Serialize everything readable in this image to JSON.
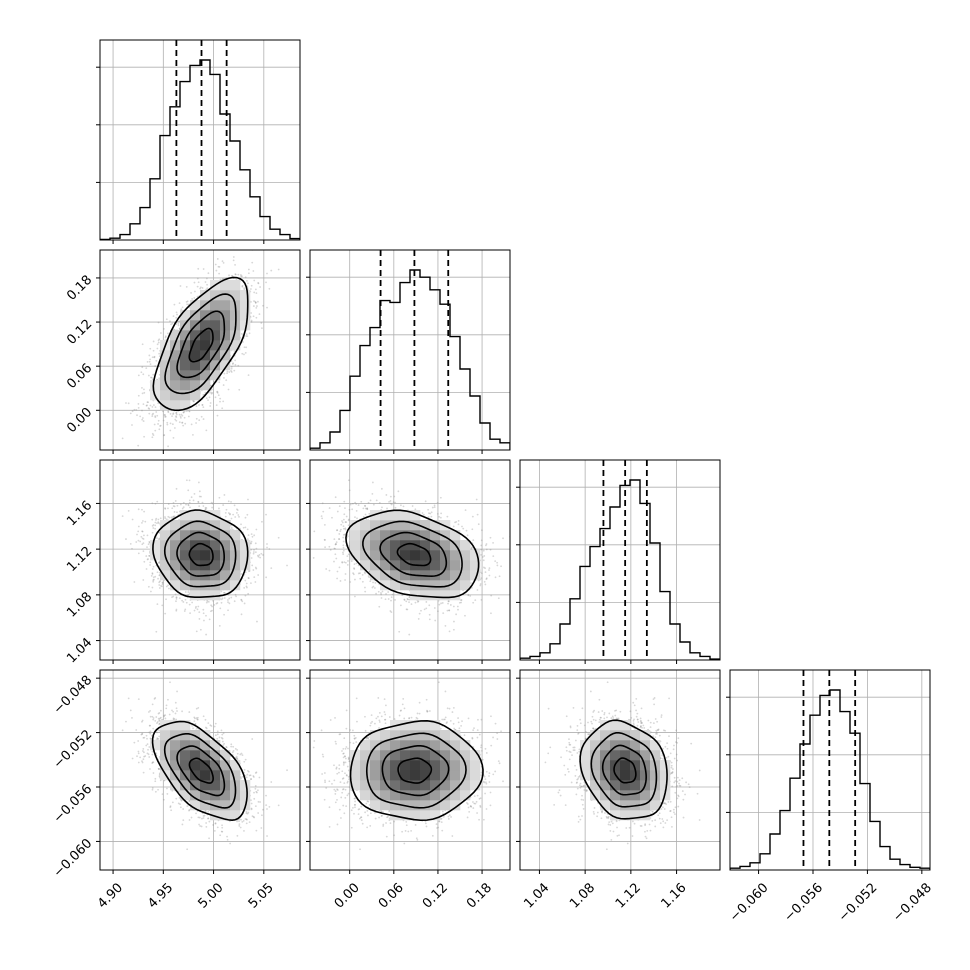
{
  "chart_data": {
    "type": "corner",
    "description_free": true,
    "parameters": [
      {
        "ticks": [
          4.9,
          4.95,
          5.0,
          5.05
        ],
        "tick_labels": [
          "4.90",
          "4.95",
          "5.00",
          "5.05"
        ],
        "range": [
          4.887,
          5.086
        ],
        "mean": 4.988,
        "sd": 0.0235,
        "quantiles": [
          4.963,
          4.988,
          5.013
        ],
        "hist": [
          0.003,
          0.01,
          0.03,
          0.09,
          0.18,
          0.34,
          0.58,
          0.74,
          0.88,
          0.97,
          1.0,
          0.92,
          0.7,
          0.55,
          0.39,
          0.24,
          0.13,
          0.06,
          0.03,
          0.008
        ]
      },
      {
        "ticks": [
          0.0,
          0.06,
          0.12,
          0.18
        ],
        "tick_labels": [
          "0.00",
          "0.06",
          "0.12",
          "0.18"
        ],
        "range": [
          -0.054,
          0.218
        ],
        "mean": 0.088,
        "sd": 0.045,
        "quantiles": [
          0.042,
          0.088,
          0.134
        ],
        "hist": [
          0.01,
          0.04,
          0.1,
          0.22,
          0.41,
          0.58,
          0.68,
          0.83,
          0.82,
          0.93,
          1.0,
          0.96,
          0.89,
          0.81,
          0.63,
          0.45,
          0.3,
          0.15,
          0.06,
          0.04
        ]
      },
      {
        "ticks": [
          1.04,
          1.08,
          1.12,
          1.16
        ],
        "tick_labels": [
          "1.04",
          "1.08",
          "1.12",
          "1.16"
        ],
        "range": [
          1.023,
          1.198
        ],
        "mean": 1.115,
        "sd": 0.019,
        "quantiles": [
          1.096,
          1.115,
          1.134
        ],
        "hist": [
          0.01,
          0.02,
          0.04,
          0.09,
          0.2,
          0.34,
          0.52,
          0.63,
          0.73,
          0.85,
          0.97,
          1.0,
          0.87,
          0.65,
          0.38,
          0.2,
          0.1,
          0.04,
          0.02,
          0.005
        ]
      },
      {
        "ticks": [
          -0.06,
          -0.056,
          -0.052,
          -0.048
        ],
        "tick_labels": [
          "−0.060",
          "−0.056",
          "−0.052",
          "−0.048"
        ],
        "range": [
          -0.0621,
          -0.0474
        ],
        "mean": -0.0548,
        "sd": 0.0018,
        "quantiles": [
          -0.0567,
          -0.0548,
          -0.0529
        ],
        "hist": [
          0.01,
          0.02,
          0.04,
          0.09,
          0.2,
          0.33,
          0.51,
          0.7,
          0.86,
          0.97,
          1.0,
          0.88,
          0.76,
          0.48,
          0.27,
          0.13,
          0.06,
          0.03,
          0.015,
          0.01
        ]
      }
    ],
    "correlations": {
      "1,0": 0.62,
      "2,0": -0.08,
      "2,1": -0.32,
      "3,0": -0.55,
      "3,1": 0.02,
      "3,2": -0.18
    },
    "contour_levels_sigma": [
      0.5,
      1.0,
      1.5,
      2.0
    ],
    "grid": true,
    "legend": false
  }
}
